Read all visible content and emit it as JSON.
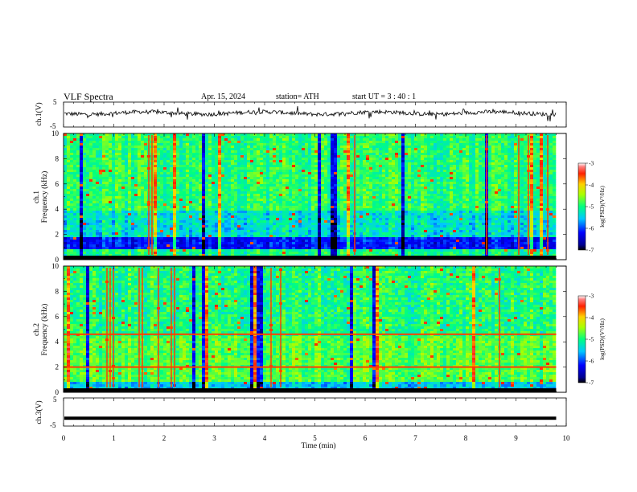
{
  "header": {
    "title": "VLF  Spectra",
    "date": "Apr. 15, 2024",
    "station": "station= ATH",
    "start": "start  UT  =   3  : 40 : 1"
  },
  "chart_data": {
    "type": "heatmap",
    "x": {
      "label": "Time  (min)",
      "range": [
        0,
        10
      ],
      "ticks": [
        "0",
        "1",
        "2",
        "3",
        "4",
        "5",
        "6",
        "7",
        "8",
        "9",
        "10"
      ],
      "data_end": 9.8
    },
    "panels": [
      {
        "id": "ch1-waveform",
        "type": "line",
        "ylabel": "ch.1(V)",
        "ylim": [
          -5,
          5
        ],
        "yticks": [
          "5",
          "-5"
        ],
        "trace_level": 0.6
      },
      {
        "id": "ch1-spectrogram",
        "type": "heatmap",
        "ylabel": "Frequency  (kHz)",
        "channel": "ch.1",
        "ylim": [
          0,
          10
        ],
        "yticks": [
          "0",
          "2",
          "4",
          "6",
          "8",
          "10"
        ],
        "low_band_khz": [
          1,
          1.8
        ],
        "colorbar": {
          "label": "log(PSD)(V²/Hz)",
          "range": [
            -7,
            -3
          ],
          "ticks": [
            "-3",
            "-4",
            "-5",
            "-6",
            "-7"
          ]
        }
      },
      {
        "id": "ch2-spectrogram",
        "type": "heatmap",
        "ylabel": "Frequency  (kHz)",
        "channel": "ch.2",
        "ylim": [
          0,
          10
        ],
        "yticks": [
          "0",
          "2",
          "4",
          "6",
          "8",
          "10"
        ],
        "lines_khz": [
          2.0,
          4.6
        ],
        "colorbar": {
          "label": "log(PSD)(V²/Hz)",
          "range": [
            -7,
            -3
          ],
          "ticks": [
            "-3",
            "-4",
            "-5",
            "-6",
            "-7"
          ]
        }
      },
      {
        "id": "ch3-waveform",
        "type": "line",
        "ylabel": "ch.3(V)",
        "ylim": [
          -5,
          5
        ],
        "yticks": [
          "5",
          "-5"
        ],
        "trace_level": -2.2
      }
    ]
  }
}
